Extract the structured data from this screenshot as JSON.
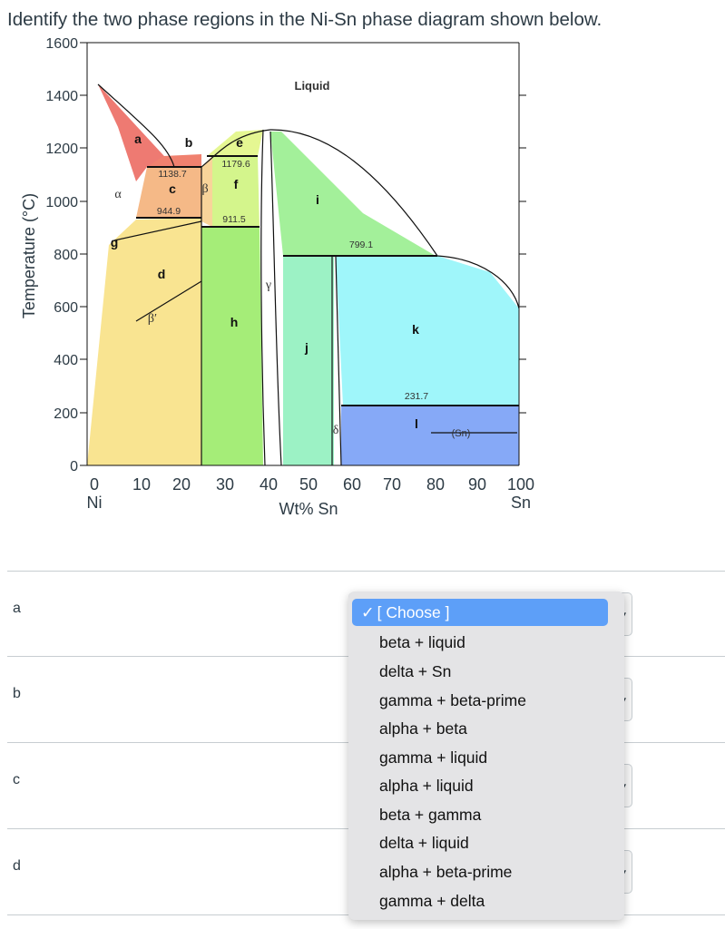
{
  "question": "Identify the two phase regions in the Ni-Sn phase diagram shown below.",
  "diagram": {
    "y_axis_label": "Temperature (°C)",
    "x_axis_label": "Wt% Sn",
    "y_ticks": [
      "1600",
      "1400",
      "1200",
      "1000",
      "800",
      "600",
      "400",
      "200",
      "0"
    ],
    "x_ticks": [
      "0",
      "10",
      "20",
      "30",
      "40",
      "50",
      "60",
      "70",
      "80",
      "90",
      "100"
    ],
    "x_left_element": "Ni",
    "x_right_element": "Sn",
    "region_labels": {
      "a": "a",
      "b": "b",
      "c": "c",
      "d": "d",
      "e": "e",
      "f": "f",
      "g": "g",
      "h": "h",
      "i": "i",
      "j": "j",
      "k": "k",
      "l": "l"
    },
    "phase_labels": {
      "liquid": "Liquid",
      "alpha": "α",
      "beta": "β",
      "beta_prime": "β′",
      "gamma": "γ",
      "delta": "δ",
      "sn": "(Sn)"
    },
    "temperatures": {
      "t1": "1138.7",
      "t2": "944.9",
      "t3": "1179.6",
      "t4": "911.5",
      "t5": "799.1",
      "t6": "231.7"
    }
  },
  "rows": [
    {
      "label": "a"
    },
    {
      "label": "b"
    },
    {
      "label": "c"
    },
    {
      "label": "d"
    }
  ],
  "dropdown": {
    "selected": "[ Choose ]",
    "checkmark": "✓",
    "options": [
      "beta + liquid",
      "delta + Sn",
      "gamma + beta-prime",
      "alpha + beta",
      "gamma + liquid",
      "alpha + liquid",
      "beta + gamma",
      "delta + liquid",
      "alpha + beta-prime",
      "gamma + delta"
    ]
  }
}
